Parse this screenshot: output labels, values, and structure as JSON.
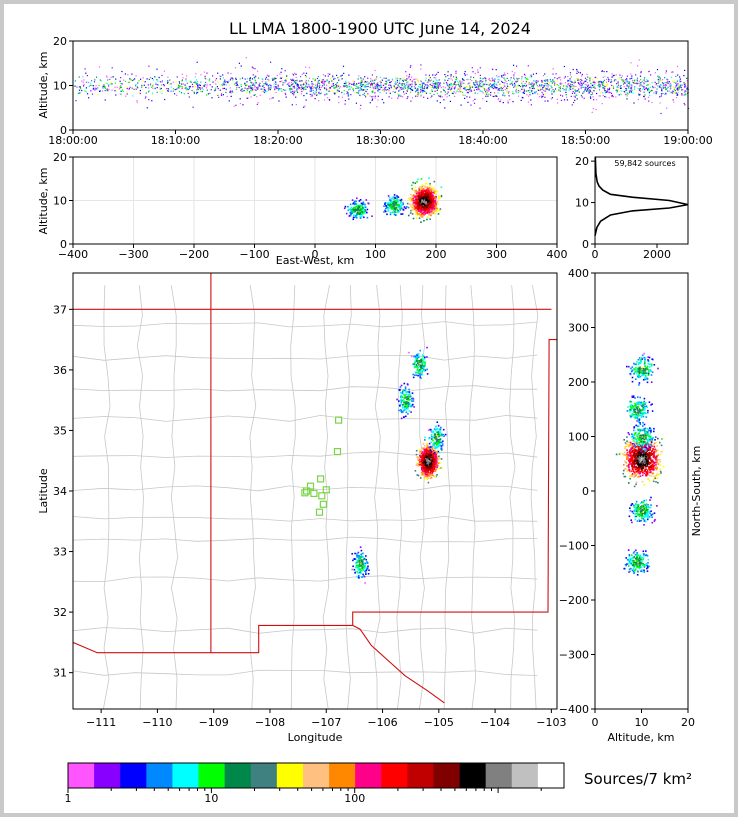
{
  "title": "LL LMA 1800-1900 UTC June 14, 2024",
  "colors": {
    "state_border": "#d01010",
    "county_line": "#c8c8c8",
    "station": "#7ad44a",
    "density_hot": "#ff0000",
    "density_core": "#ffffff"
  },
  "chart_data": [
    {
      "id": "time-altitude",
      "type": "heatmap",
      "ylabel": "Altitude, km",
      "xlim": [
        "18:00:00",
        "19:00:00"
      ],
      "ylim": [
        0,
        20
      ],
      "x_ticks": [
        "18:00:00",
        "18:10:00",
        "18:20:00",
        "18:30:00",
        "18:40:00",
        "18:50:00",
        "19:00:00"
      ],
      "y_ticks": [
        0,
        10,
        20
      ],
      "description_values": {
        "dense_altitude_band_km": [
          6,
          14
        ],
        "peak_altitude_km": 10
      }
    },
    {
      "id": "eastwest-altitude",
      "type": "heatmap",
      "xlabel": "East-West, km",
      "ylabel": "Altitude, km",
      "xlim": [
        -400,
        400
      ],
      "ylim": [
        0,
        20
      ],
      "x_ticks": [
        -400,
        -300,
        -200,
        -100,
        0,
        100,
        200,
        300,
        400
      ],
      "y_ticks": [
        0,
        10,
        20
      ],
      "clusters": [
        {
          "ew_km": 180,
          "alt_km": 10,
          "peak": true
        },
        {
          "ew_km": 130,
          "alt_km": 9,
          "peak": false
        },
        {
          "ew_km": 70,
          "alt_km": 8,
          "peak": false
        }
      ]
    },
    {
      "id": "altitude-histogram",
      "type": "line",
      "annotation": "59,842 sources",
      "xlim": [
        0,
        3000
      ],
      "ylim": [
        0,
        21
      ],
      "x_ticks": [
        0,
        2000
      ],
      "y_ticks": [
        0,
        10,
        20
      ],
      "x": [
        0,
        60,
        180,
        500,
        1200,
        2400,
        3000,
        2400,
        1200,
        500,
        250,
        130,
        70,
        30,
        10
      ],
      "y": [
        2,
        4,
        5.5,
        7,
        8,
        8.7,
        9.5,
        10.5,
        11.3,
        12,
        13,
        14,
        15,
        17,
        21
      ]
    },
    {
      "id": "plan-view-map",
      "type": "heatmap",
      "xlabel": "Longitude",
      "ylabel": "Latitude",
      "xlim": [
        -111.5,
        -102.9
      ],
      "ylim": [
        30.4,
        37.6
      ],
      "x_ticks": [
        -111,
        -110,
        -109,
        -108,
        -107,
        -106,
        -105,
        -104,
        -103
      ],
      "y_ticks": [
        31,
        32,
        33,
        34,
        35,
        36,
        37
      ],
      "stations": [
        [
          -107.28,
          34.08
        ],
        [
          -107.1,
          34.2
        ],
        [
          -107.35,
          34.0
        ],
        [
          -107.0,
          34.02
        ],
        [
          -107.08,
          33.92
        ],
        [
          -107.22,
          33.96
        ],
        [
          -107.05,
          33.78
        ],
        [
          -107.12,
          33.65
        ],
        [
          -107.38,
          33.97
        ],
        [
          -106.78,
          35.17
        ],
        [
          -106.8,
          34.65
        ]
      ],
      "clusters": [
        {
          "lon": -105.2,
          "lat": 34.5,
          "peak": true
        },
        {
          "lon": -105.35,
          "lat": 36.1,
          "peak": false
        },
        {
          "lon": -105.6,
          "lat": 35.5,
          "peak": false
        },
        {
          "lon": -105.05,
          "lat": 34.88,
          "peak": false
        },
        {
          "lon": -106.4,
          "lat": 32.8,
          "peak": false
        }
      ]
    },
    {
      "id": "altitude-northsouth",
      "type": "heatmap",
      "xlabel": "Altitude, km",
      "ylabel": "North-South, km",
      "xlim": [
        0,
        20
      ],
      "ylim": [
        -400,
        400
      ],
      "x_ticks": [
        0,
        10,
        20
      ],
      "y_ticks": [
        -400,
        -300,
        -200,
        -100,
        0,
        100,
        200,
        300,
        400
      ],
      "clusters": [
        {
          "alt_km": 10,
          "ns_km": 60,
          "peak": true
        },
        {
          "alt_km": 10,
          "ns_km": 225,
          "peak": false
        },
        {
          "alt_km": 9,
          "ns_km": 150,
          "peak": false
        },
        {
          "alt_km": 10,
          "ns_km": 100,
          "peak": false
        },
        {
          "alt_km": 9,
          "ns_km": -130,
          "peak": false
        },
        {
          "alt_km": 10,
          "ns_km": -35,
          "peak": false
        }
      ]
    },
    {
      "id": "colorbar",
      "type": "table",
      "label": "Sources/7 km²",
      "scale": "log",
      "tick_labels": [
        "1",
        "10",
        "100"
      ],
      "colors": [
        "#ff55ff",
        "#8800ff",
        "#0000ff",
        "#0088ff",
        "#00ffff",
        "#00ff00",
        "#00884a",
        "#3f8080",
        "#ffff00",
        "#ffc080",
        "#ff8800",
        "#ff0088",
        "#ff0000",
        "#c00000",
        "#800000",
        "#000000",
        "#808080",
        "#c0c0c0",
        "#ffffff"
      ]
    }
  ]
}
